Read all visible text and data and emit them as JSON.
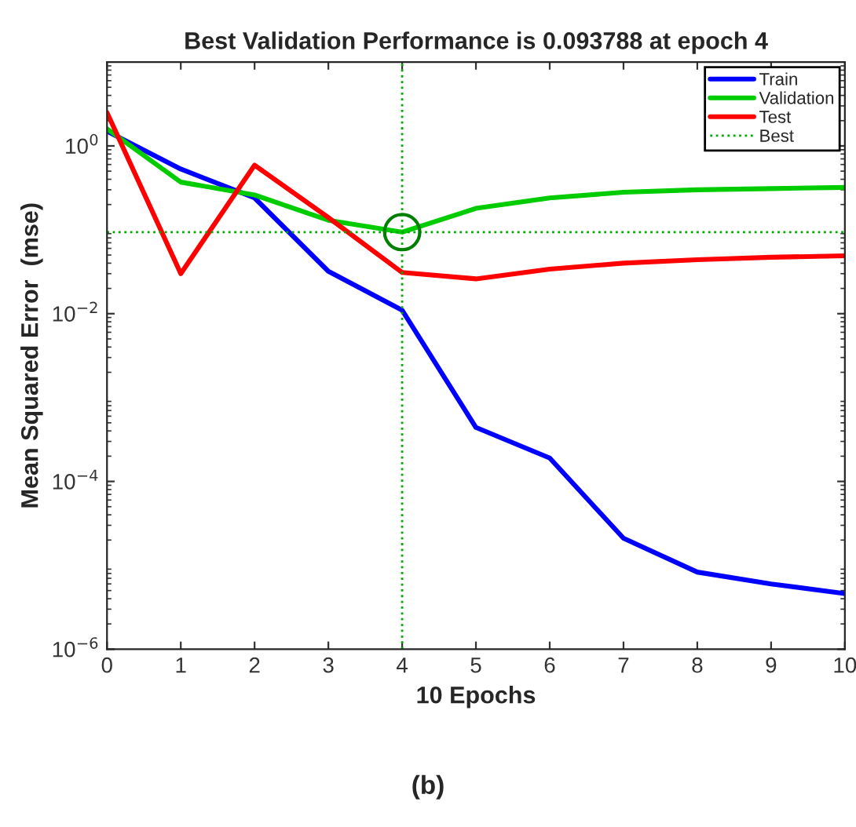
{
  "chart_data": {
    "type": "line",
    "title": "Best Validation Performance is 0.093788 at epoch 4",
    "xlabel": "10 Epochs",
    "ylabel": "Mean Squared Error  (mse)",
    "x": [
      0,
      1,
      2,
      3,
      4,
      5,
      6,
      7,
      8,
      9,
      10
    ],
    "series": [
      {
        "name": "Train",
        "color": "#0000ff",
        "values": [
          1.5,
          0.53,
          0.24,
          0.032,
          0.011,
          0.00044,
          0.00019,
          2.1e-05,
          8.3e-06,
          6e-06,
          4.6e-06
        ]
      },
      {
        "name": "Validation",
        "color": "#00cc00",
        "values": [
          1.6,
          0.37,
          0.26,
          0.13,
          0.093788,
          0.18,
          0.24,
          0.28,
          0.3,
          0.31,
          0.32
        ]
      },
      {
        "name": "Test",
        "color": "#ff0000",
        "values": [
          2.5,
          0.03,
          0.59,
          0.14,
          0.031,
          0.026,
          0.034,
          0.04,
          0.044,
          0.047,
          0.049
        ]
      },
      {
        "type": "scatter",
        "marker": "circle",
        "color": "#007f00",
        "x": [
          4
        ],
        "values": [
          0.093788
        ]
      }
    ],
    "ref_lines": [
      {
        "axis": "y",
        "value": 0.093788,
        "label": "Best",
        "color": "#00aa00",
        "line_style": "dotted"
      },
      {
        "axis": "x",
        "value": 4,
        "color": "#00aa00",
        "line_style": "dotted"
      }
    ],
    "log": "y",
    "xlim": [
      0,
      10
    ],
    "ylim": [
      1e-06,
      10
    ],
    "xticks": [
      0,
      1,
      2,
      3,
      4,
      5,
      6,
      7,
      8,
      9,
      10
    ],
    "yticks": [
      {
        "value": 1e-06,
        "label": "10$^{−6}$"
      },
      {
        "value": 0.0001,
        "label": "10$^{−4}$"
      },
      {
        "value": 0.01,
        "label": "10$^{−2}$"
      },
      {
        "value": 1,
        "label": "10$^{0}$"
      }
    ],
    "legend": "top right",
    "grid": false,
    "line_style": "solid",
    "annotations": [
      "(b)"
    ]
  }
}
